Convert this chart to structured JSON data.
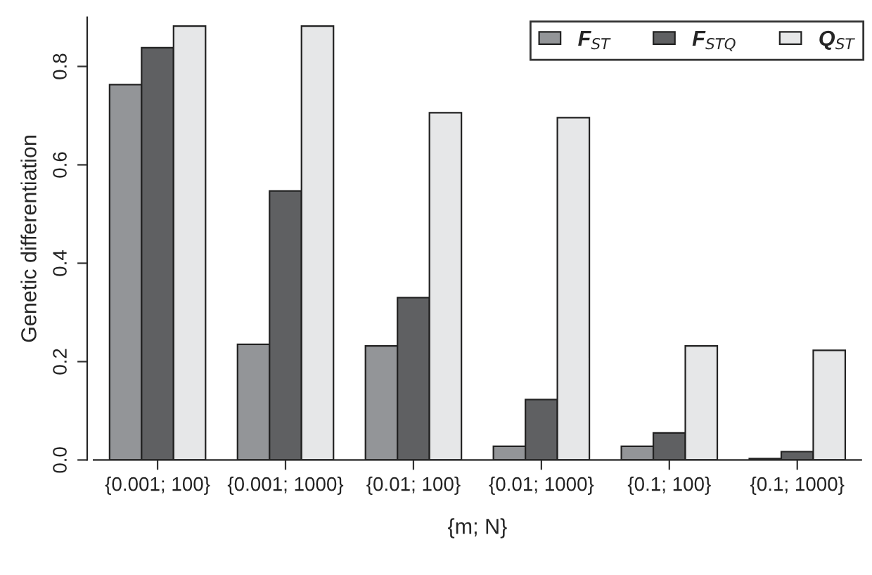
{
  "chart_data": {
    "type": "bar",
    "xlabel": "{m; N}",
    "ylabel": "Genetic differentiation",
    "categories": [
      "{0.001; 100}",
      "{0.001; 1000}",
      "{0.01; 100}",
      "{0.01; 1000}",
      "{0.1; 100}",
      "{0.1; 1000}"
    ],
    "series": [
      {
        "name": "F$_{ST}$",
        "color": "#939598",
        "values": [
          0.763,
          0.235,
          0.232,
          0.028,
          0.028,
          0.003
        ]
      },
      {
        "name": "F$_{STQ}$",
        "color": "#5f6062",
        "values": [
          0.838,
          0.547,
          0.33,
          0.123,
          0.055,
          0.017
        ]
      },
      {
        "name": "Q$_{ST}$",
        "color": "#e6e7e8",
        "values": [
          0.882,
          0.882,
          0.706,
          0.696,
          0.232,
          0.223
        ]
      }
    ],
    "ylim": [
      0,
      0.9
    ],
    "yticks": [
      {
        "value": 0,
        "label": "0.0"
      },
      0.2,
      0.4,
      0.6,
      0.8
    ],
    "grid": false,
    "legend": "top right"
  }
}
